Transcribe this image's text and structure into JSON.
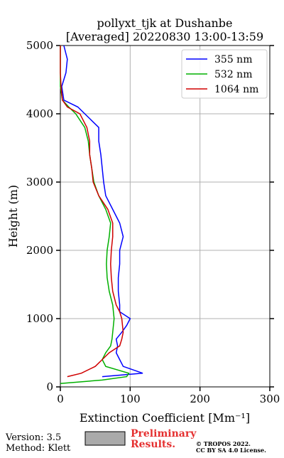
{
  "chart_data": {
    "type": "line",
    "title": [
      "pollyxt_tjk at Dushanbe",
      "[Averaged] 20220830 13:00-13:59"
    ],
    "x_label": "Extinction Coefficient [Mm⁻¹]",
    "y_label": "Height (m)",
    "y": [
      0,
      50,
      100,
      150,
      200,
      300,
      400,
      500,
      600,
      700,
      800,
      900,
      1000,
      1100,
      1200,
      1400,
      1600,
      1800,
      2000,
      2200,
      2400,
      2600,
      2800,
      3000,
      3200,
      3400,
      3600,
      3800,
      4000,
      4100,
      4200,
      4400,
      4600,
      4800,
      5000
    ],
    "series": [
      {
        "name": "355 nm",
        "color": "#0000ff",
        "values": [
          null,
          null,
          null,
          60,
          118,
          90,
          85,
          80,
          82,
          80,
          88,
          95,
          100,
          85,
          85,
          83,
          83,
          85,
          85,
          90,
          85,
          75,
          65,
          62,
          60,
          58,
          55,
          55,
          35,
          25,
          5,
          2,
          8,
          10,
          5
        ]
      },
      {
        "name": "532 nm",
        "color": "#00b000",
        "values": [
          null,
          0,
          60,
          95,
          98,
          65,
          60,
          65,
          72,
          74,
          75,
          76,
          77,
          76,
          75,
          70,
          67,
          66,
          67,
          70,
          72,
          65,
          55,
          48,
          45,
          42,
          40,
          35,
          22,
          12,
          3,
          0,
          0,
          0,
          0
        ]
      },
      {
        "name": "1064 nm",
        "color": "#d00000",
        "values": [
          null,
          null,
          null,
          10,
          30,
          50,
          60,
          70,
          85,
          88,
          90,
          89,
          88,
          85,
          80,
          75,
          73,
          72,
          73,
          75,
          75,
          68,
          55,
          47,
          45,
          42,
          42,
          38,
          28,
          10,
          3,
          1,
          0,
          0,
          0
        ]
      }
    ],
    "xlim": [
      0,
      300
    ],
    "xticks": [
      0,
      100,
      200,
      300
    ],
    "ylim": [
      0,
      5000
    ],
    "yticks": [
      0,
      1000,
      2000,
      3000,
      4000,
      5000
    ],
    "grid": true,
    "legend": "upper right"
  },
  "footer": {
    "version": "Version: 3.5",
    "method": "Method: Klett",
    "preliminary": [
      "Preliminary",
      "Results."
    ],
    "copyright": [
      "© TROPOS 2022.",
      "CC BY SA 4.0 License."
    ]
  }
}
